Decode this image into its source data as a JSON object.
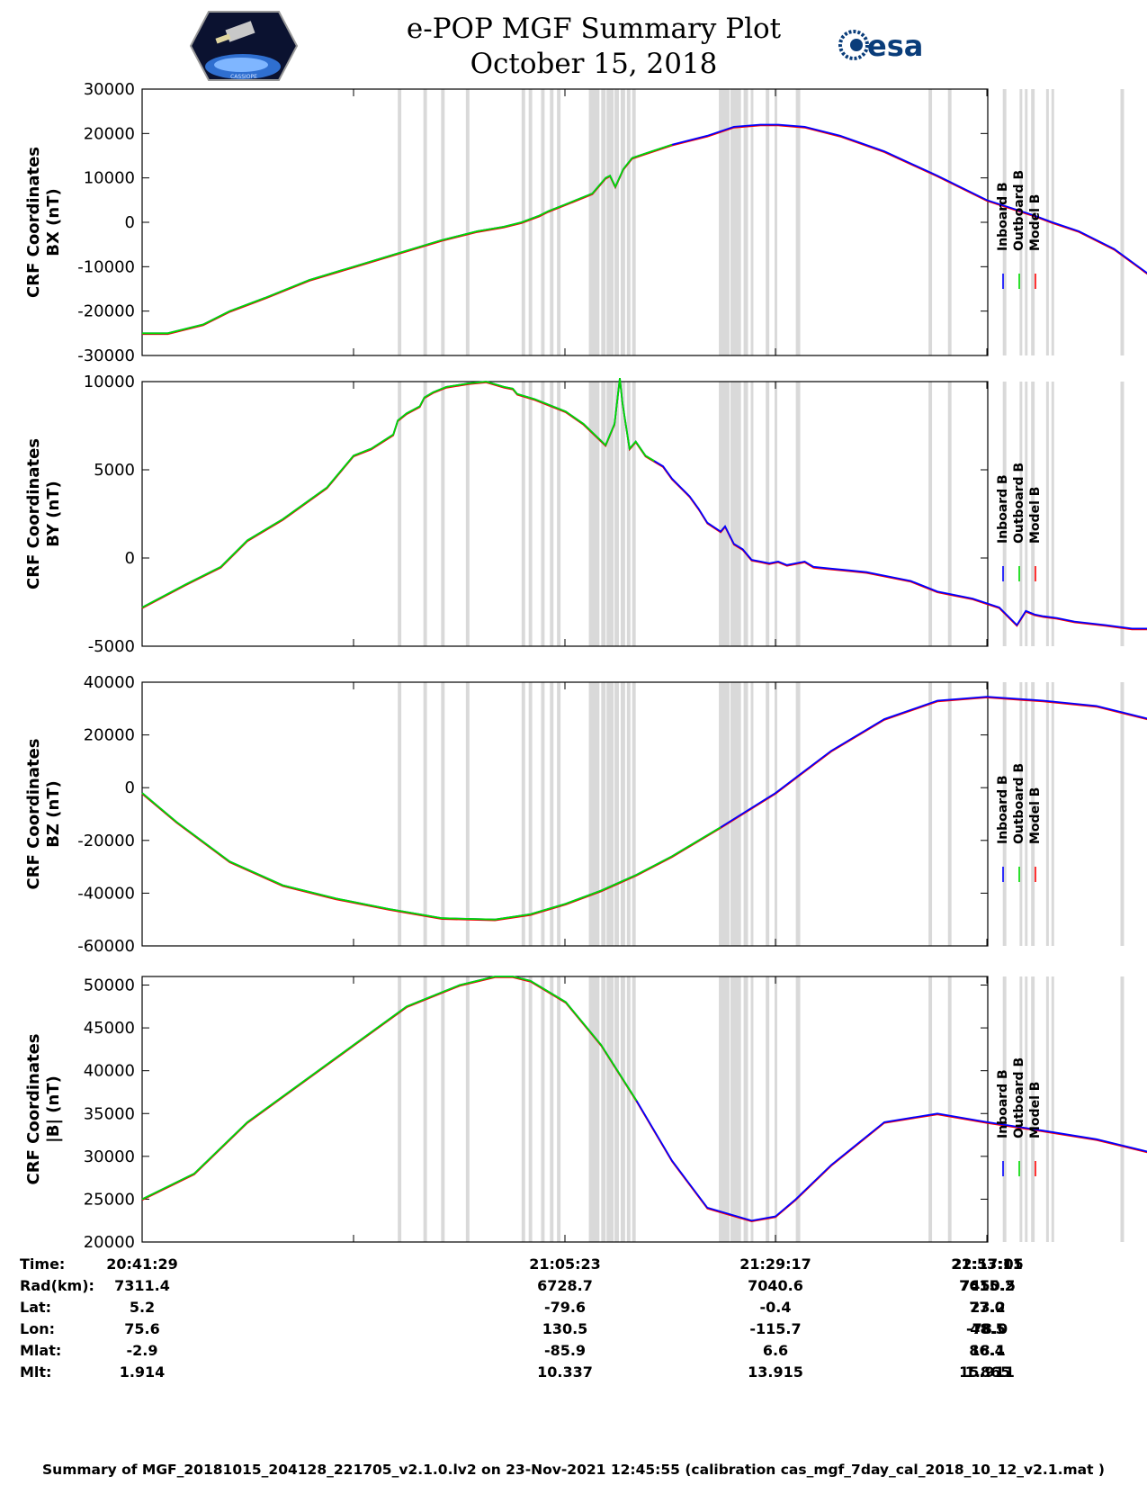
{
  "header": {
    "title": "e-POP MGF Summary Plot",
    "date": "October 15, 2018",
    "esa_logo_text": "esa",
    "mission_logo_text": "CASSIOPE"
  },
  "footer": "Summary of MGF_20181015_204128_221705_v2.1.0.lv2 on 23-Nov-2021 12:45:55 (calibration cas_mgf_7day_cal_2018_10_12_v2.1.mat )",
  "legend": {
    "labels": [
      "Inboard B",
      "Outboard B",
      "Model B"
    ]
  },
  "colors": {
    "inboard": "#0000ff",
    "outboard": "#00dd00",
    "model": "#ff0000",
    "shading": "#d9d9d9"
  },
  "time_table": {
    "row_labels": [
      "Time:",
      "Rad(km):",
      "Lat:",
      "Lon:",
      "Mlat:",
      "Mlt:"
    ],
    "columns": [
      [
        "20:41:29",
        "7311.4",
        "5.2",
        "75.6",
        "-2.9",
        "1.914"
      ],
      [
        "21:05:23",
        "6728.7",
        "-79.6",
        "130.5",
        "-85.9",
        "10.337"
      ],
      [
        "21:29:17",
        "7040.6",
        "-0.4",
        "-115.7",
        "6.6",
        "13.915"
      ],
      [
        "21:53:11",
        "7615.2",
        "77.0",
        "-78.0",
        "86.4",
        "15.911"
      ],
      [
        "22:17:05",
        "7450.5",
        "23.2",
        "48.5",
        "18.1",
        "1.865"
      ]
    ]
  },
  "chart_data": {
    "type": "line",
    "x_unit": "minutes after 20:41:29",
    "xlim": [
      -23.9,
      71.7
    ],
    "x_ticks": [
      0,
      23.9,
      47.7,
      71.6
    ],
    "shaded_bands": [
      [
        5.0,
        5.4
      ],
      [
        7.9,
        8.3
      ],
      [
        9.9,
        10.3
      ],
      [
        12.7,
        13.1
      ],
      [
        19.0,
        19.4
      ],
      [
        19.8,
        20.2
      ],
      [
        21.2,
        21.6
      ],
      [
        22.2,
        22.6
      ],
      [
        23.0,
        23.4
      ],
      [
        26.6,
        27.8
      ],
      [
        28.0,
        28.5
      ],
      [
        28.6,
        29.4
      ],
      [
        29.5,
        30.0
      ],
      [
        30.2,
        30.7
      ],
      [
        30.9,
        31.3
      ],
      [
        31.5,
        31.9
      ],
      [
        41.3,
        42.5
      ],
      [
        42.6,
        43.8
      ],
      [
        44.1,
        44.6
      ],
      [
        44.9,
        45.2
      ],
      [
        46.6,
        47.0
      ],
      [
        47.6,
        47.9
      ],
      [
        50.0,
        50.5
      ],
      [
        65.0,
        65.4
      ],
      [
        67.2,
        67.6
      ],
      [
        73.4,
        73.8
      ],
      [
        75.3,
        75.6
      ],
      [
        75.9,
        76.2
      ],
      [
        76.6,
        77.0
      ],
      [
        78.3,
        78.6
      ],
      [
        78.9,
        79.2
      ],
      [
        86.7,
        87.1
      ]
    ],
    "panels": [
      {
        "ylabel": [
          "CRF Coordinates",
          "BX (nT)"
        ],
        "ylim": [
          -30000,
          30000
        ],
        "yticks": [
          -30000,
          -20000,
          -10000,
          0,
          10000,
          20000,
          30000
        ],
        "green_until": 37.2,
        "series_x": [
          -23.9,
          -21.0,
          -17.0,
          -14.0,
          -10.0,
          -5.0,
          0.0,
          5.0,
          10.0,
          14.0,
          17.0,
          19.0,
          21.0,
          22.0,
          23.9,
          27.0,
          28.5,
          29.0,
          29.6,
          30.5,
          31.5,
          33.0,
          36.0,
          40.0,
          43.0,
          46.0,
          48.0,
          51.0,
          55.0,
          60.0,
          66.0,
          71.6,
          77.0,
          79.0,
          82.0,
          86.0,
          95.6
        ],
        "bx": [
          -25000,
          -25000,
          -23000,
          -20000,
          -17000,
          -13000,
          -10000,
          -7000,
          -4000,
          -2000,
          -1000,
          0,
          1500,
          2500,
          4000,
          6500,
          10000,
          10500,
          8000,
          12000,
          14500,
          15500,
          17500,
          19500,
          21500,
          22000,
          22000,
          21500,
          19500,
          16000,
          10500,
          5000,
          1500,
          0,
          -2000,
          -6000,
          -20000
        ]
      },
      {
        "ylabel": [
          "CRF Coordinates",
          "BY (nT)"
        ],
        "ylim": [
          -5000,
          10000
        ],
        "yticks": [
          -5000,
          0,
          5000,
          10000
        ],
        "green_until": 34.0,
        "series_x": [
          -23.9,
          -19.0,
          -15.0,
          -12.0,
          -8.0,
          -3.0,
          0.0,
          2.0,
          4.5,
          5.0,
          6.0,
          7.5,
          8.0,
          9.0,
          10.5,
          13.0,
          15.0,
          17.0,
          18.0,
          18.5,
          20.5,
          24.0,
          26.0,
          28.5,
          29.5,
          30.1,
          30.4,
          31.2,
          31.9,
          33.0,
          34.0,
          35.0,
          36.0,
          37.0,
          38.0,
          39.0,
          40.0,
          41.5,
          42.0,
          43.0,
          44.0,
          45.0,
          46.0,
          47.0,
          48.0,
          49.0,
          50.0,
          51.0,
          52.0,
          54.0,
          56.0,
          58.0,
          60.0,
          63.0,
          66.0,
          70.0,
          73.0,
          75.0,
          76.0,
          77.0,
          78.0,
          79.5,
          81.5,
          85.0,
          88.0,
          91.0,
          95.6
        ],
        "by": [
          -2800,
          -1500,
          -500,
          1000,
          2200,
          4000,
          5800,
          6200,
          7000,
          7800,
          8200,
          8600,
          9100,
          9400,
          9700,
          9900,
          10000,
          9700,
          9600,
          9300,
          9000,
          8300,
          7600,
          6400,
          7600,
          10200,
          8800,
          6200,
          6600,
          5800,
          5500,
          5200,
          4500,
          4000,
          3500,
          2800,
          2000,
          1500,
          1800,
          800,
          500,
          -100,
          -200,
          -300,
          -200,
          -400,
          -300,
          -200,
          -500,
          -600,
          -700,
          -800,
          -1000,
          -1300,
          -1900,
          -2300,
          -2800,
          -3800,
          -3000,
          -3200,
          -3300,
          -3400,
          -3600,
          -3800,
          -4000,
          -4000,
          -3900
        ]
      },
      {
        "ylabel": [
          "CRF Coordinates",
          "BZ (nT)"
        ],
        "ylim": [
          -60000,
          40000
        ],
        "yticks": [
          -60000,
          -40000,
          -20000,
          0,
          20000,
          40000
        ],
        "green_until": 41.5,
        "series_x": [
          -23.9,
          -20.0,
          -14.0,
          -8.0,
          -2.0,
          4.0,
          10.0,
          16.0,
          20.0,
          24.0,
          28.0,
          32.0,
          36.0,
          41.5,
          47.7,
          54.0,
          60.0,
          66.0,
          71.6,
          78.0,
          84.0,
          90.0,
          95.6
        ],
        "bz": [
          -2000,
          -13000,
          -28000,
          -37000,
          -42000,
          -46000,
          -49500,
          -50000,
          -48000,
          -44000,
          -39000,
          -33000,
          -26000,
          -15000,
          -2000,
          14000,
          26000,
          33000,
          34500,
          33000,
          31000,
          26000,
          14000
        ]
      },
      {
        "ylabel": [
          "CRF Coordinates",
          "|B| (nT)"
        ],
        "ylim": [
          20000,
          51000
        ],
        "yticks": [
          20000,
          25000,
          30000,
          35000,
          40000,
          45000,
          50000
        ],
        "green_until": 34.0,
        "series_x": [
          -23.9,
          -18.0,
          -12.0,
          -6.0,
          0.0,
          6.0,
          12.0,
          16.0,
          18.0,
          20.0,
          24.0,
          28.0,
          32.0,
          36.0,
          40.0,
          45.0,
          47.7,
          50.0,
          54.0,
          60.0,
          66.0,
          71.6,
          78.0,
          84.0,
          90.0,
          95.6
        ],
        "bt": [
          25000,
          28000,
          34000,
          38500,
          43000,
          47500,
          50000,
          51000,
          51000,
          50500,
          48000,
          43000,
          36500,
          29500,
          24000,
          22500,
          23000,
          25000,
          29000,
          34000,
          35000,
          34000,
          33000,
          32000,
          30500,
          25000
        ]
      }
    ]
  }
}
